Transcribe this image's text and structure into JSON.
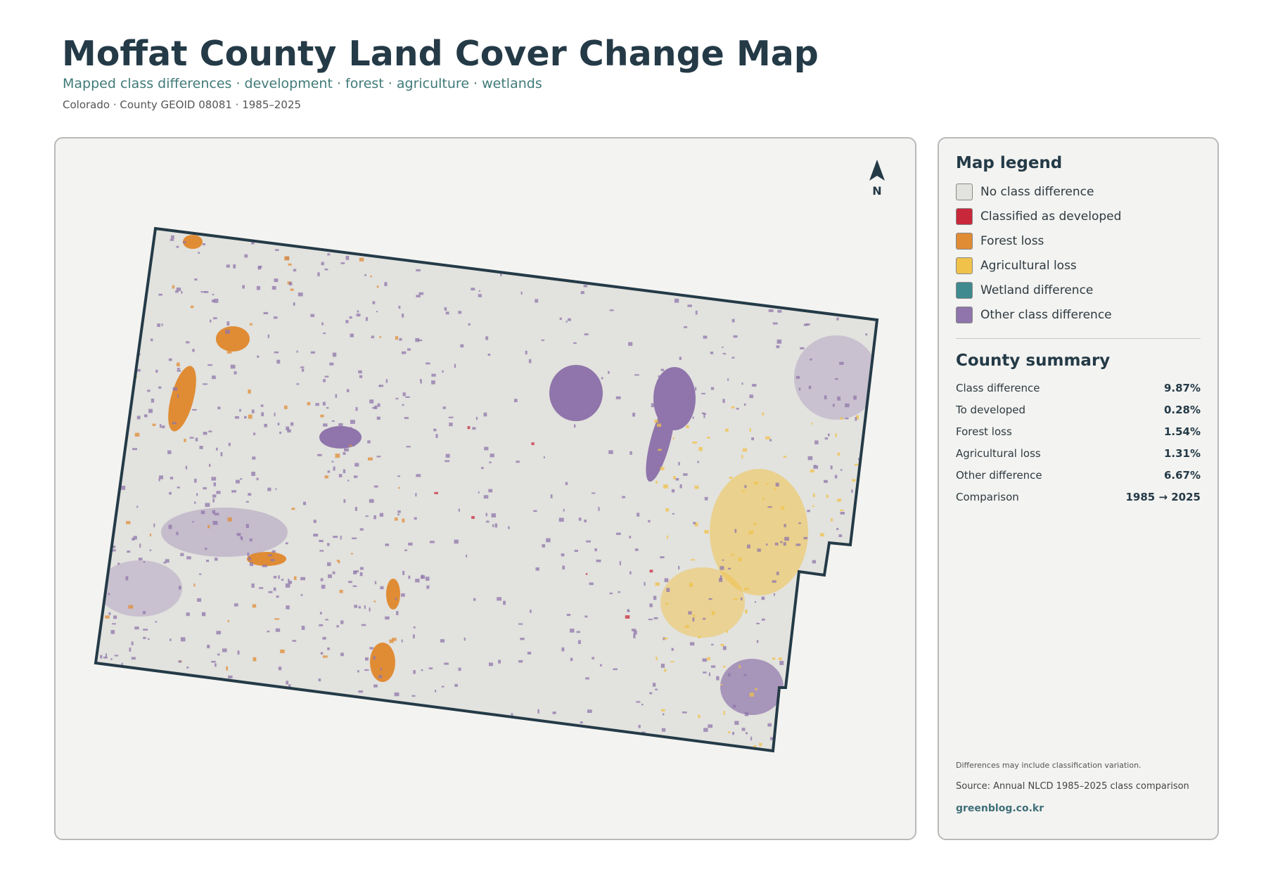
{
  "header": {
    "title": "Moffat County Land Cover Change Map",
    "subtitle": "Mapped class differences · development · forest · agriculture · wetlands",
    "meta": "Colorado · County GEOID 08081 · 1985–2025"
  },
  "map": {
    "north": "N"
  },
  "legend": {
    "title": "Map legend",
    "items": [
      {
        "label": "No class difference",
        "color": "#e2e2de"
      },
      {
        "label": "Classified as developed",
        "color": "#c8283a"
      },
      {
        "label": "Forest loss",
        "color": "#e08c35"
      },
      {
        "label": "Agricultural loss",
        "color": "#f0c24a"
      },
      {
        "label": "Wetland difference",
        "color": "#3f8a8e"
      },
      {
        "label": "Other class difference",
        "color": "#8f75ab"
      }
    ]
  },
  "summary": {
    "title": "County summary",
    "rows": [
      [
        "Class difference",
        "9.87%"
      ],
      [
        "To developed",
        "0.28%"
      ],
      [
        "Forest loss",
        "1.54%"
      ],
      [
        "Agricultural loss",
        "1.31%"
      ],
      [
        "Other difference",
        "6.67%"
      ],
      [
        "Comparison",
        "1985 → 2025"
      ]
    ]
  },
  "footer": {
    "note": "Differences may include classification variation.",
    "source": "Source: Annual NLCD 1985–2025 class comparison",
    "site": "greenblog.co.kr"
  }
}
